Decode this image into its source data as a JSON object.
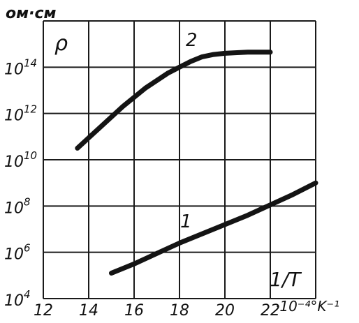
{
  "chart_data": {
    "type": "line",
    "title": "",
    "ylabel_unit": "ом·см",
    "y_symbol": "ρ",
    "xlabel": "1/T",
    "x_unit_suffix": "·10⁻⁴°K⁻¹",
    "xlim": [
      12,
      24
    ],
    "ylim_log10": [
      4,
      16
    ],
    "grid": true,
    "x_ticks": [
      {
        "value": 12,
        "label": "12"
      },
      {
        "value": 14,
        "label": "14"
      },
      {
        "value": 16,
        "label": "16"
      },
      {
        "value": 18,
        "label": "18"
      },
      {
        "value": 20,
        "label": "20"
      },
      {
        "value": 22,
        "label": "22"
      }
    ],
    "y_ticks": [
      {
        "value": 4,
        "base": "10",
        "exp": "4"
      },
      {
        "value": 6,
        "base": "10",
        "exp": "6"
      },
      {
        "value": 8,
        "base": "10",
        "exp": "8"
      },
      {
        "value": 10,
        "base": "10",
        "exp": "10"
      },
      {
        "value": 12,
        "base": "10",
        "exp": "12"
      },
      {
        "value": 14,
        "base": "10",
        "exp": "14"
      }
    ],
    "series": [
      {
        "name": "1",
        "x": [
          15.0,
          16.0,
          17.0,
          18.0,
          19.0,
          20.0,
          21.0,
          22.0,
          23.0,
          24.0
        ],
        "y_log10": [
          5.1,
          5.5,
          5.95,
          6.4,
          6.8,
          7.2,
          7.6,
          8.05,
          8.5,
          9.0
        ]
      },
      {
        "name": "2",
        "x": [
          13.5,
          14.5,
          15.5,
          16.5,
          17.5,
          18.0,
          18.5,
          19.0,
          19.5,
          20.0,
          21.0,
          22.0
        ],
        "y_log10": [
          10.5,
          11.4,
          12.3,
          13.1,
          13.75,
          14.0,
          14.25,
          14.45,
          14.55,
          14.6,
          14.65,
          14.65
        ]
      }
    ]
  },
  "colors": {
    "line": "#141414",
    "grid": "#1a1a1a",
    "text": "#111111"
  }
}
